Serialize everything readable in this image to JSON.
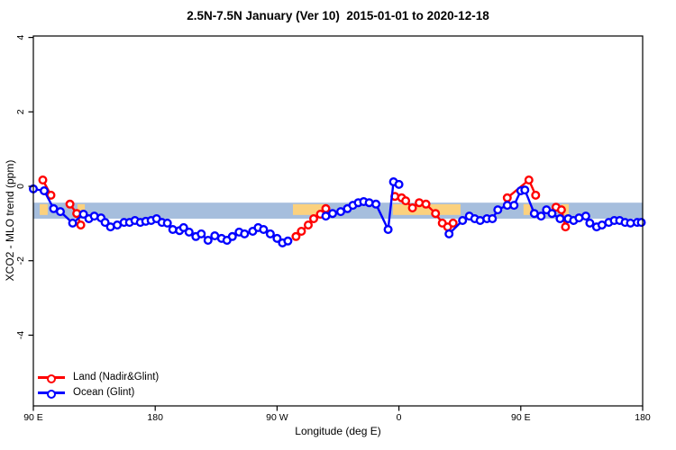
{
  "title": "2.5N-7.5N January (Ver 10)  2015-01-01 to 2020-12-18",
  "chart_data": {
    "type": "line",
    "title": "2.5N-7.5N January (Ver 10)  2015-01-01 to 2020-12-18",
    "xlabel": "Longitude (deg E)",
    "ylabel": "XCO2 - MLO trend (ppm)",
    "x_axis": {
      "note": "x expressed in degrees east of 90E; axis wraps 90E-180-90W-0-90E-180",
      "range": [
        0,
        450
      ],
      "ticks": [
        0,
        90,
        180,
        270,
        360,
        450
      ],
      "tick_labels": [
        "90 E",
        "180",
        "90 W",
        "0",
        "90 E",
        "180"
      ]
    },
    "y_axis": {
      "range": [
        -5.9,
        4.05
      ],
      "ticks": [
        4,
        2,
        0,
        -2,
        -4
      ],
      "tick_labels": [
        "4",
        "2",
        "0",
        "-2",
        "-4"
      ]
    },
    "grid": false,
    "legend_position": "bottom-left",
    "bands": {
      "blue_band": {
        "color": "#a6bedd",
        "x": [
          0,
          450
        ],
        "y_top": -0.44,
        "y_bottom": -0.87
      },
      "orange_color": "#fbd17e",
      "orange_segments": [
        {
          "x": [
            4.7,
            10.6
          ]
        },
        {
          "x": [
            32.6,
            38.0
          ]
        },
        {
          "x": [
            191.7,
            215.7
          ]
        },
        {
          "x": [
            265.6,
            315.5
          ]
        },
        {
          "x": [
            362.0,
            367.4
          ]
        },
        {
          "x": [
            390.0,
            395.4
          ]
        }
      ],
      "orange_y_top": -0.48,
      "orange_y_bottom": -0.77
    },
    "series": [
      {
        "name": "Land (Nadir&Glint)",
        "color": "#ff0000",
        "marker": "open-circle",
        "segments": [
          [
            [
              7,
              0.17
            ],
            [
              13,
              -0.24
            ]
          ],
          [
            [
              27,
              -0.48
            ],
            [
              32,
              -0.73
            ],
            [
              35,
              -1.04
            ]
          ],
          [
            [
              194,
              -1.35
            ],
            [
              198,
              -1.21
            ],
            [
              203,
              -1.04
            ],
            [
              207,
              -0.87
            ],
            [
              212,
              -0.75
            ],
            [
              216,
              -0.6
            ]
          ],
          [
            [
              267,
              -0.27
            ],
            [
              272,
              -0.31
            ],
            [
              275,
              -0.39
            ],
            [
              280,
              -0.58
            ],
            [
              285,
              -0.44
            ],
            [
              290,
              -0.48
            ],
            [
              297,
              -0.73
            ],
            [
              302,
              -0.99
            ],
            [
              306,
              -1.09
            ],
            [
              310,
              -0.99
            ]
          ],
          [
            [
              350,
              -0.31
            ],
            [
              366,
              0.17
            ],
            [
              371,
              -0.24
            ]
          ],
          [
            [
              386,
              -0.56
            ],
            [
              390,
              -0.63
            ],
            [
              393,
              -1.09
            ]
          ]
        ]
      },
      {
        "name": "Ocean (Glint)",
        "color": "#0000ff",
        "marker": "open-circle",
        "segments": [
          [
            [
              0,
              -0.07
            ],
            [
              8,
              -0.12
            ],
            [
              15,
              -0.6
            ],
            [
              20,
              -0.68
            ],
            [
              29,
              -0.99
            ],
            [
              37,
              -0.75
            ],
            [
              41,
              -0.87
            ],
            [
              45,
              -0.8
            ],
            [
              50,
              -0.85
            ],
            [
              53,
              -0.97
            ],
            [
              57,
              -1.09
            ],
            [
              62,
              -1.04
            ],
            [
              67,
              -0.97
            ],
            [
              71,
              -0.97
            ],
            [
              75,
              -0.92
            ],
            [
              79,
              -0.97
            ],
            [
              83,
              -0.94
            ],
            [
              87,
              -0.92
            ],
            [
              91,
              -0.87
            ],
            [
              95,
              -0.97
            ],
            [
              99,
              -0.99
            ],
            [
              103,
              -1.16
            ],
            [
              108,
              -1.19
            ],
            [
              111,
              -1.11
            ],
            [
              115,
              -1.23
            ],
            [
              120,
              -1.35
            ],
            [
              124,
              -1.28
            ],
            [
              129,
              -1.45
            ],
            [
              134,
              -1.33
            ],
            [
              139,
              -1.4
            ],
            [
              143,
              -1.45
            ],
            [
              147,
              -1.35
            ],
            [
              152,
              -1.23
            ],
            [
              156,
              -1.28
            ],
            [
              162,
              -1.21
            ],
            [
              166,
              -1.11
            ],
            [
              170,
              -1.16
            ],
            [
              175,
              -1.28
            ],
            [
              180,
              -1.4
            ],
            [
              184,
              -1.52
            ],
            [
              188,
              -1.47
            ]
          ],
          [
            [
              216,
              -0.8
            ],
            [
              221,
              -0.73
            ],
            [
              227,
              -0.68
            ],
            [
              232,
              -0.6
            ],
            [
              236,
              -0.51
            ],
            [
              240,
              -0.44
            ],
            [
              244,
              -0.41
            ],
            [
              248,
              -0.44
            ],
            [
              253,
              -0.48
            ],
            [
              262,
              -1.16
            ],
            [
              266,
              0.12
            ],
            [
              270,
              0.05
            ]
          ],
          [
            [
              307,
              -1.28
            ],
            [
              317,
              -0.92
            ],
            [
              322,
              -0.8
            ],
            [
              326,
              -0.87
            ],
            [
              330,
              -0.92
            ],
            [
              335,
              -0.87
            ],
            [
              339,
              -0.87
            ],
            [
              343,
              -0.63
            ],
            [
              350,
              -0.51
            ],
            [
              355,
              -0.51
            ],
            [
              360,
              -0.12
            ],
            [
              363,
              -0.1
            ],
            [
              370,
              -0.73
            ],
            [
              375,
              -0.8
            ],
            [
              379,
              -0.63
            ],
            [
              383,
              -0.73
            ],
            [
              389,
              -0.87
            ],
            [
              395,
              -0.87
            ],
            [
              399,
              -0.92
            ],
            [
              403,
              -0.85
            ],
            [
              408,
              -0.8
            ],
            [
              411,
              -0.99
            ],
            [
              416,
              -1.09
            ],
            [
              420,
              -1.04
            ],
            [
              425,
              -0.97
            ],
            [
              429,
              -0.92
            ],
            [
              433,
              -0.92
            ],
            [
              437,
              -0.97
            ],
            [
              441,
              -0.99
            ],
            [
              446,
              -0.97
            ],
            [
              449,
              -0.97
            ]
          ]
        ]
      }
    ]
  },
  "legend": {
    "land_label": "Land (Nadir&Glint)",
    "ocean_label": "Ocean (Glint)"
  },
  "colors": {
    "land": "#ff0000",
    "ocean": "#0000ff",
    "blue_band": "#a6bedd",
    "orange_band": "#fbd17e"
  }
}
